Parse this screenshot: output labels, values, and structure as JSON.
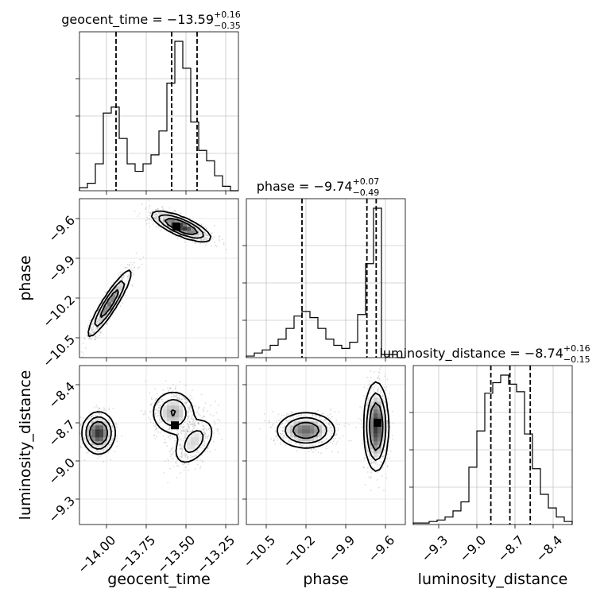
{
  "chart_data": {
    "type": "corner",
    "parameters": [
      {
        "name": "geocent_time",
        "axis_label": "geocent_time",
        "range": [
          -14.17,
          -13.17
        ],
        "ticks": [
          -14.0,
          -13.75,
          -13.5,
          -13.25
        ],
        "tick_labels": [
          "−14.00",
          "−13.75",
          "−13.50",
          "−13.25"
        ],
        "title": {
          "prefix": "geocent_time = ",
          "value": "−13.59",
          "upper": "+0.16",
          "lower": "−0.35"
        },
        "quantiles": [
          -13.94,
          -13.59,
          -13.43
        ],
        "hist_bins": [
          -14.17,
          -14.12,
          -14.07,
          -14.02,
          -13.97,
          -13.92,
          -13.87,
          -13.82,
          -13.77,
          -13.72,
          -13.67,
          -13.62,
          -13.57,
          -13.52,
          -13.47,
          -13.42,
          -13.37,
          -13.32,
          -13.27,
          -13.22,
          -13.17
        ],
        "hist_counts": [
          0.02,
          0.05,
          0.18,
          0.52,
          0.56,
          0.35,
          0.18,
          0.13,
          0.18,
          0.24,
          0.4,
          0.72,
          1.0,
          0.82,
          0.46,
          0.27,
          0.2,
          0.1,
          0.03,
          0.0
        ]
      },
      {
        "name": "phase",
        "axis_label": "phase",
        "range": [
          -10.65,
          -9.45
        ],
        "ticks": [
          -10.5,
          -10.2,
          -9.9,
          -9.6
        ],
        "tick_labels": [
          "−10.5",
          "−10.2",
          "−9.9",
          "−9.6"
        ],
        "title": {
          "prefix": "phase = ",
          "value": "−9.74",
          "upper": "+0.07",
          "lower": "−0.49"
        },
        "quantiles": [
          -10.23,
          -9.74,
          -9.67
        ],
        "hist_bins": [
          -10.65,
          -10.59,
          -10.53,
          -10.47,
          -10.41,
          -10.35,
          -10.29,
          -10.23,
          -10.17,
          -10.11,
          -10.05,
          -9.99,
          -9.93,
          -9.87,
          -9.81,
          -9.75,
          -9.69,
          -9.63,
          -9.57,
          -9.51,
          -9.45
        ],
        "hist_counts": [
          0.01,
          0.03,
          0.05,
          0.08,
          0.12,
          0.19,
          0.27,
          0.3,
          0.26,
          0.19,
          0.12,
          0.08,
          0.06,
          0.1,
          0.28,
          0.61,
          0.97,
          0.02,
          0.02,
          0.0
        ]
      },
      {
        "name": "luminosity_distance",
        "axis_label": "luminosity_distance",
        "range": [
          -9.5,
          -8.25
        ],
        "ticks": [
          -9.3,
          -9.0,
          -8.7,
          -8.4
        ],
        "tick_labels": [
          "−9.3",
          "−9.0",
          "−8.7",
          "−8.4"
        ],
        "title": {
          "prefix": "luminosity_distance = ",
          "value": "−8.74",
          "upper": "+0.16",
          "lower": "−0.15"
        },
        "quantiles": [
          -8.89,
          -8.74,
          -8.58
        ],
        "hist_bins": [
          -9.5,
          -9.4375,
          -9.375,
          -9.3125,
          -9.25,
          -9.1875,
          -9.125,
          -9.0625,
          -9.0,
          -8.9375,
          -8.875,
          -8.8125,
          -8.75,
          -8.6875,
          -8.625,
          -8.5625,
          -8.5,
          -8.4375,
          -8.375,
          -8.3125,
          -8.25
        ],
        "hist_counts": [
          0.01,
          0.01,
          0.02,
          0.03,
          0.05,
          0.09,
          0.15,
          0.38,
          0.62,
          0.87,
          0.94,
          0.99,
          0.93,
          0.88,
          0.6,
          0.37,
          0.2,
          0.11,
          0.05,
          0.02
        ]
      }
    ],
    "panels_2d": [
      {
        "x_param": "geocent_time",
        "y_param": "phase",
        "clusters": [
          {
            "center": [
              -13.53,
              -9.66
            ],
            "sd": [
              0.09,
              0.055
            ],
            "rho": -0.75,
            "weight": 0.55
          },
          {
            "center": [
              -13.98,
              -10.24
            ],
            "sd": [
              0.07,
              0.13
            ],
            "rho": 0.92,
            "weight": 0.45
          }
        ],
        "peak": [
          -13.56,
          -9.66
        ]
      },
      {
        "x_param": "geocent_time",
        "y_param": "luminosity_distance",
        "clusters": [
          {
            "center": [
              -14.05,
              -8.78
            ],
            "sd": [
              0.05,
              0.08
            ],
            "rho": 0.0,
            "weight": 0.4
          },
          {
            "center": [
              -13.58,
              -8.62
            ],
            "sd": [
              0.07,
              0.09
            ],
            "rho": 0.0,
            "weight": 0.35
          },
          {
            "center": [
              -13.45,
              -8.85
            ],
            "sd": [
              0.07,
              0.1
            ],
            "rho": 0.5,
            "weight": 0.25
          }
        ],
        "peak": [
          -13.57,
          -8.72
        ]
      },
      {
        "x_param": "phase",
        "y_param": "luminosity_distance",
        "clusters": [
          {
            "center": [
              -10.2,
              -8.76
            ],
            "sd": [
              0.11,
              0.07
            ],
            "rho": 0.0,
            "weight": 0.45
          },
          {
            "center": [
              -9.67,
              -8.73
            ],
            "sd": [
              0.045,
              0.17
            ],
            "rho": 0.0,
            "weight": 0.55
          }
        ],
        "peak": [
          -9.66,
          -8.7
        ]
      }
    ],
    "grid": true
  }
}
